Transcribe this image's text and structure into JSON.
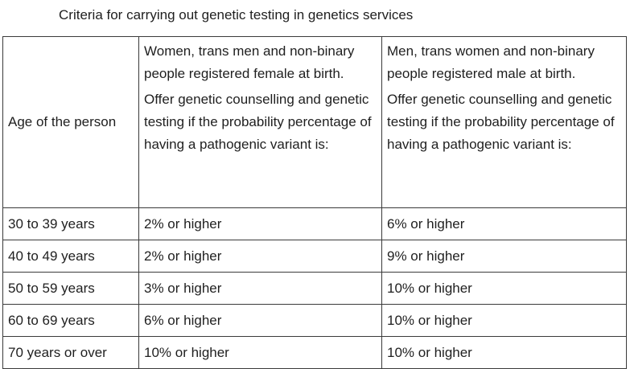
{
  "caption": "Criteria for carrying out genetic testing in genetics services",
  "table": {
    "header": [
      [
        "Age of the person"
      ],
      [
        "Women, trans men and non-binary people registered female at birth.",
        "Offer genetic counselling and genetic testing if the probability percentage of having a pathogenic variant is:"
      ],
      [
        "Men, trans women and non-binary people registered male at birth.",
        "Offer genetic counselling and genetic testing if the probability percentage of having a pathogenic variant is:"
      ]
    ],
    "rows": [
      [
        "30 to 39 years",
        "2% or higher",
        "6% or higher"
      ],
      [
        "40 to 49 years",
        "2% or higher",
        "9% or higher"
      ],
      [
        "50 to 59 years",
        "3% or higher",
        "10% or higher"
      ],
      [
        "60 to 69 years",
        "6% or higher",
        "10% or higher"
      ],
      [
        "70 years or over",
        "10% or higher",
        "10% or higher"
      ]
    ]
  }
}
